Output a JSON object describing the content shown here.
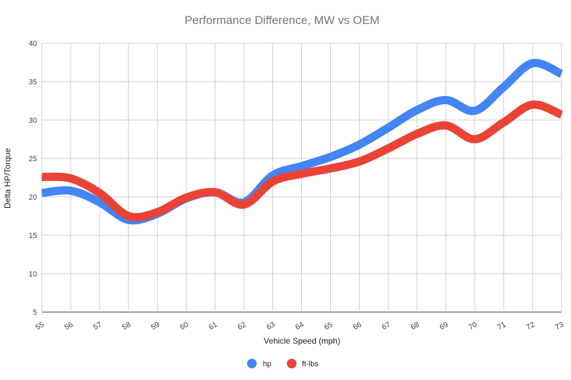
{
  "chart_data": {
    "type": "line",
    "title": "Performance Difference, MW vs OEM",
    "xlabel": "Vehicle Speed (mph)",
    "ylabel": "Delta HP/Torque",
    "x": [
      55,
      56,
      57,
      58,
      59,
      60,
      61,
      62,
      63,
      64,
      65,
      66,
      67,
      68,
      69,
      70,
      71,
      72,
      73
    ],
    "xlim": [
      55,
      73
    ],
    "ylim": [
      5,
      40
    ],
    "yticks": [
      5,
      10,
      15,
      20,
      25,
      30,
      35,
      40
    ],
    "grid": true,
    "legend_position": "bottom",
    "series": [
      {
        "name": "hp",
        "color": "#4285f4",
        "values": [
          20.5,
          20.8,
          19.3,
          17.0,
          17.8,
          19.8,
          20.6,
          19.3,
          22.8,
          24.0,
          25.2,
          26.8,
          29.0,
          31.3,
          32.6,
          31.2,
          34.3,
          37.4,
          36.0
        ]
      },
      {
        "name": "ft-lbs",
        "color": "#ea4335",
        "values": [
          22.6,
          22.4,
          20.5,
          17.5,
          18.0,
          19.9,
          20.6,
          19.0,
          22.0,
          23.0,
          23.7,
          24.6,
          26.3,
          28.2,
          29.3,
          27.5,
          29.7,
          32.0,
          30.7
        ]
      }
    ]
  }
}
